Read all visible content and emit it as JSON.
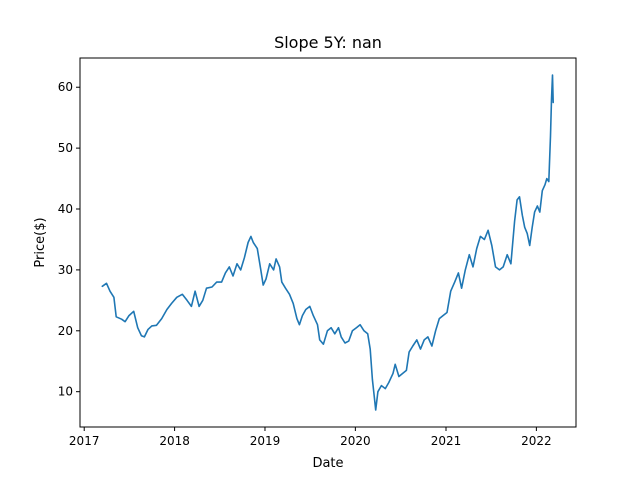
{
  "chart_data": {
    "type": "line",
    "title": "Slope 5Y: nan",
    "xlabel": "Date",
    "ylabel": "Price($)",
    "xlim": [
      "2016-12-15",
      "2022-06-10"
    ],
    "ylim": [
      4.2,
      64.8
    ],
    "x_ticks": [
      {
        "value": "2017-01-01",
        "label": "2017"
      },
      {
        "value": "2018-01-01",
        "label": "2018"
      },
      {
        "value": "2019-01-01",
        "label": "2019"
      },
      {
        "value": "2020-01-01",
        "label": "2020"
      },
      {
        "value": "2021-01-01",
        "label": "2021"
      },
      {
        "value": "2022-01-01",
        "label": "2022"
      }
    ],
    "y_ticks": [
      {
        "value": 10,
        "label": "10"
      },
      {
        "value": 20,
        "label": "20"
      },
      {
        "value": 30,
        "label": "30"
      },
      {
        "value": 40,
        "label": "40"
      },
      {
        "value": 50,
        "label": "50"
      },
      {
        "value": 60,
        "label": "60"
      }
    ],
    "grid": false,
    "legend": "none",
    "series": [
      {
        "color": "#1f77b4",
        "points": [
          [
            "2017-03-15",
            27.3
          ],
          [
            "2017-04-01",
            27.8
          ],
          [
            "2017-04-15",
            26.5
          ],
          [
            "2017-05-01",
            25.5
          ],
          [
            "2017-05-10",
            22.3
          ],
          [
            "2017-06-01",
            21.9
          ],
          [
            "2017-06-15",
            21.5
          ],
          [
            "2017-07-01",
            22.5
          ],
          [
            "2017-07-20",
            23.2
          ],
          [
            "2017-08-05",
            20.5
          ],
          [
            "2017-08-20",
            19.2
          ],
          [
            "2017-09-01",
            19.0
          ],
          [
            "2017-09-15",
            20.2
          ],
          [
            "2017-10-01",
            20.8
          ],
          [
            "2017-10-20",
            20.9
          ],
          [
            "2017-11-10",
            22.0
          ],
          [
            "2017-12-01",
            23.5
          ],
          [
            "2017-12-20",
            24.5
          ],
          [
            "2018-01-10",
            25.5
          ],
          [
            "2018-02-01",
            26.0
          ],
          [
            "2018-02-20",
            25.0
          ],
          [
            "2018-03-10",
            24.0
          ],
          [
            "2018-03-25",
            26.5
          ],
          [
            "2018-04-10",
            24.0
          ],
          [
            "2018-04-25",
            25.0
          ],
          [
            "2018-05-10",
            27.0
          ],
          [
            "2018-06-01",
            27.2
          ],
          [
            "2018-06-20",
            28.0
          ],
          [
            "2018-07-10",
            28.0
          ],
          [
            "2018-07-25",
            29.5
          ],
          [
            "2018-08-10",
            30.5
          ],
          [
            "2018-08-25",
            29.0
          ],
          [
            "2018-09-10",
            31.0
          ],
          [
            "2018-09-25",
            30.0
          ],
          [
            "2018-10-10",
            32.0
          ],
          [
            "2018-10-25",
            34.5
          ],
          [
            "2018-11-05",
            35.5
          ],
          [
            "2018-11-15",
            34.5
          ],
          [
            "2018-12-01",
            33.5
          ],
          [
            "2018-12-15",
            30.0
          ],
          [
            "2018-12-25",
            27.5
          ],
          [
            "2019-01-05",
            28.5
          ],
          [
            "2019-01-20",
            31.0
          ],
          [
            "2019-02-05",
            30.0
          ],
          [
            "2019-02-15",
            31.8
          ],
          [
            "2019-03-01",
            30.5
          ],
          [
            "2019-03-10",
            28.0
          ],
          [
            "2019-03-25",
            27.0
          ],
          [
            "2019-04-10",
            26.0
          ],
          [
            "2019-04-25",
            24.5
          ],
          [
            "2019-05-10",
            22.0
          ],
          [
            "2019-05-20",
            21.0
          ],
          [
            "2019-06-01",
            22.5
          ],
          [
            "2019-06-15",
            23.5
          ],
          [
            "2019-07-01",
            24.0
          ],
          [
            "2019-07-15",
            22.5
          ],
          [
            "2019-08-01",
            21.0
          ],
          [
            "2019-08-10",
            18.5
          ],
          [
            "2019-08-25",
            17.8
          ],
          [
            "2019-09-10",
            20.0
          ],
          [
            "2019-09-25",
            20.5
          ],
          [
            "2019-10-10",
            19.5
          ],
          [
            "2019-10-25",
            20.5
          ],
          [
            "2019-11-05",
            19.0
          ],
          [
            "2019-11-20",
            18.0
          ],
          [
            "2019-12-05",
            18.3
          ],
          [
            "2019-12-20",
            20.0
          ],
          [
            "2020-01-05",
            20.5
          ],
          [
            "2020-01-20",
            21.0
          ],
          [
            "2020-02-05",
            20.0
          ],
          [
            "2020-02-20",
            19.5
          ],
          [
            "2020-03-01",
            17.0
          ],
          [
            "2020-03-10",
            12.0
          ],
          [
            "2020-03-18",
            9.0
          ],
          [
            "2020-03-23",
            7.0
          ],
          [
            "2020-04-01",
            10.0
          ],
          [
            "2020-04-15",
            11.0
          ],
          [
            "2020-05-01",
            10.5
          ],
          [
            "2020-05-15",
            11.5
          ],
          [
            "2020-06-01",
            13.0
          ],
          [
            "2020-06-10",
            14.5
          ],
          [
            "2020-06-25",
            12.5
          ],
          [
            "2020-07-10",
            13.0
          ],
          [
            "2020-07-25",
            13.5
          ],
          [
            "2020-08-05",
            16.5
          ],
          [
            "2020-08-20",
            17.5
          ],
          [
            "2020-09-05",
            18.5
          ],
          [
            "2020-09-20",
            17.0
          ],
          [
            "2020-10-05",
            18.5
          ],
          [
            "2020-10-20",
            19.0
          ],
          [
            "2020-11-05",
            17.5
          ],
          [
            "2020-11-20",
            20.0
          ],
          [
            "2020-12-05",
            22.0
          ],
          [
            "2020-12-20",
            22.5
          ],
          [
            "2021-01-05",
            23.0
          ],
          [
            "2021-01-20",
            26.5
          ],
          [
            "2021-02-05",
            28.0
          ],
          [
            "2021-02-20",
            29.5
          ],
          [
            "2021-03-05",
            27.0
          ],
          [
            "2021-03-20",
            30.0
          ],
          [
            "2021-04-05",
            32.5
          ],
          [
            "2021-04-20",
            30.5
          ],
          [
            "2021-05-05",
            33.5
          ],
          [
            "2021-05-20",
            35.5
          ],
          [
            "2021-06-05",
            35.0
          ],
          [
            "2021-06-20",
            36.5
          ],
          [
            "2021-07-05",
            34.0
          ],
          [
            "2021-07-20",
            30.5
          ],
          [
            "2021-08-05",
            30.0
          ],
          [
            "2021-08-20",
            30.5
          ],
          [
            "2021-09-05",
            32.5
          ],
          [
            "2021-09-20",
            31.0
          ],
          [
            "2021-10-05",
            38.0
          ],
          [
            "2021-10-15",
            41.5
          ],
          [
            "2021-10-25",
            42.0
          ],
          [
            "2021-11-05",
            39.0
          ],
          [
            "2021-11-15",
            37.0
          ],
          [
            "2021-11-25",
            36.0
          ],
          [
            "2021-12-05",
            34.0
          ],
          [
            "2021-12-15",
            37.0
          ],
          [
            "2021-12-25",
            39.5
          ],
          [
            "2022-01-05",
            40.5
          ],
          [
            "2022-01-15",
            39.5
          ],
          [
            "2022-01-25",
            43.0
          ],
          [
            "2022-02-05",
            44.0
          ],
          [
            "2022-02-12",
            45.0
          ],
          [
            "2022-02-20",
            44.5
          ],
          [
            "2022-02-27",
            52.0
          ],
          [
            "2022-03-03",
            58.0
          ],
          [
            "2022-03-07",
            62.0
          ],
          [
            "2022-03-10",
            57.5
          ]
        ]
      }
    ]
  }
}
